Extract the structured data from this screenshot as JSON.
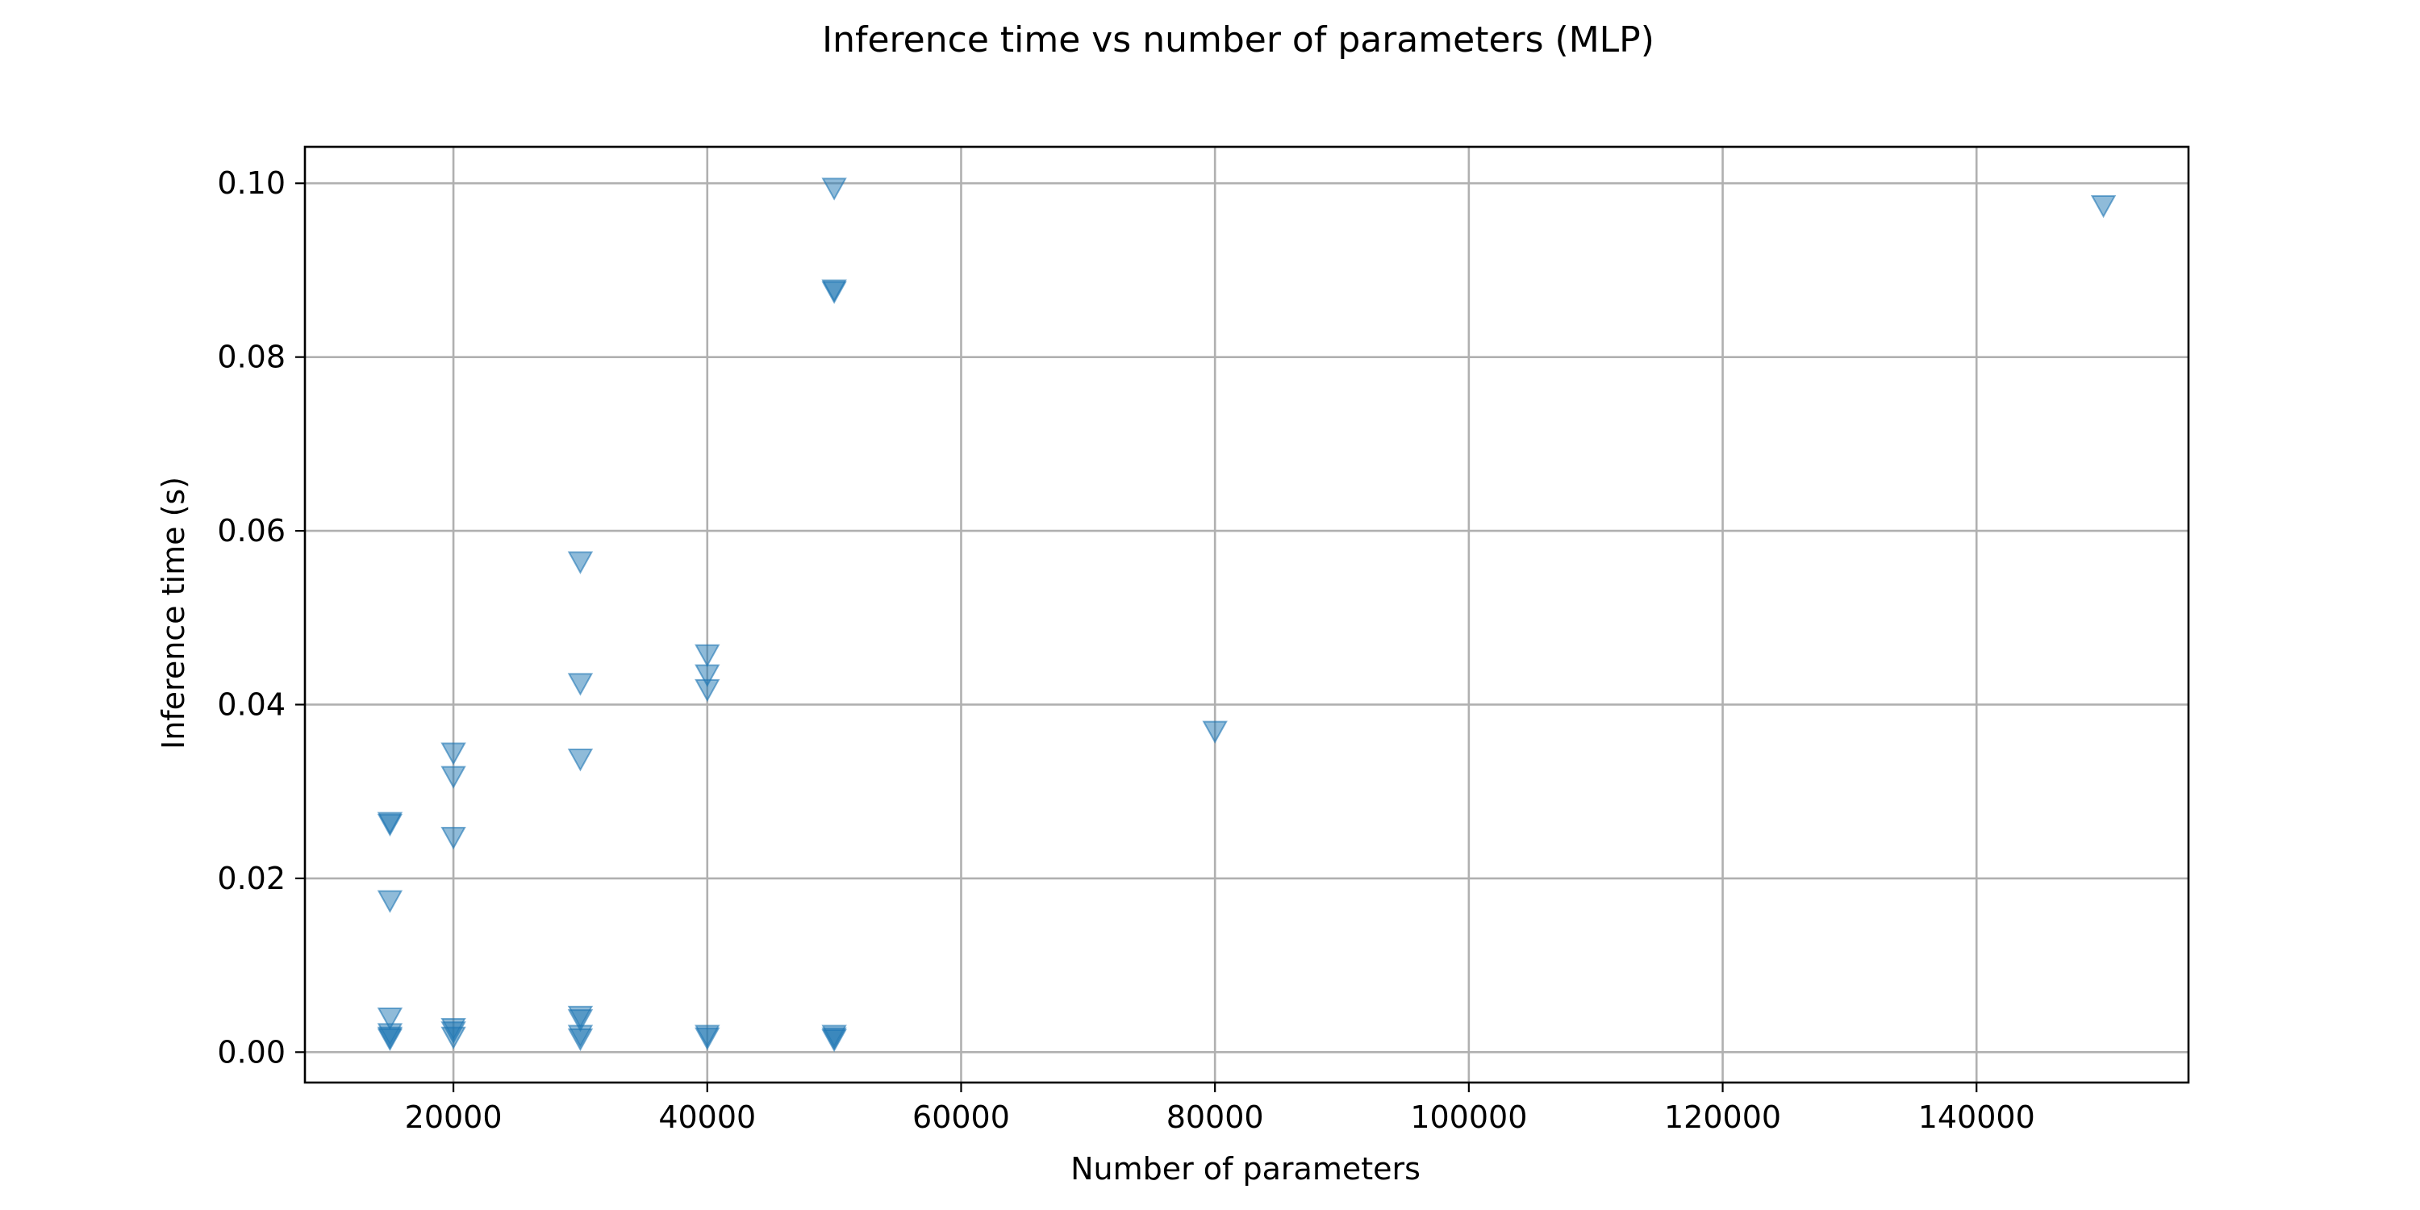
{
  "chart_data": {
    "type": "scatter",
    "title": "Inference time vs number of parameters (MLP)",
    "xlabel": "Number of parameters",
    "ylabel": "Inference time (s)",
    "xlim": [
      8300,
      156700
    ],
    "ylim": [
      -0.0035,
      0.1042
    ],
    "xticks": [
      20000,
      40000,
      60000,
      80000,
      100000,
      120000,
      140000
    ],
    "xtick_labels": [
      "20000",
      "40000",
      "60000",
      "80000",
      "100000",
      "120000",
      "140000"
    ],
    "yticks": [
      0.0,
      0.02,
      0.04,
      0.06,
      0.08,
      0.1
    ],
    "ytick_labels": [
      "0.00",
      "0.02",
      "0.04",
      "0.06",
      "0.08",
      "0.10"
    ],
    "grid": true,
    "marker": "triangle-down",
    "marker_color": "#1f77b4",
    "marker_alpha": 0.5,
    "points": [
      {
        "x": 15000,
        "y": 0.0265
      },
      {
        "x": 15000,
        "y": 0.0263
      },
      {
        "x": 15000,
        "y": 0.0175
      },
      {
        "x": 15000,
        "y": 0.004
      },
      {
        "x": 15000,
        "y": 0.0022
      },
      {
        "x": 15000,
        "y": 0.0018
      },
      {
        "x": 15000,
        "y": 0.0016
      },
      {
        "x": 20000,
        "y": 0.0345
      },
      {
        "x": 20000,
        "y": 0.0318
      },
      {
        "x": 20000,
        "y": 0.0248
      },
      {
        "x": 20000,
        "y": 0.0028
      },
      {
        "x": 20000,
        "y": 0.0024
      },
      {
        "x": 20000,
        "y": 0.0018
      },
      {
        "x": 30000,
        "y": 0.0565
      },
      {
        "x": 30000,
        "y": 0.0425
      },
      {
        "x": 30000,
        "y": 0.0338
      },
      {
        "x": 30000,
        "y": 0.0042
      },
      {
        "x": 30000,
        "y": 0.0038
      },
      {
        "x": 30000,
        "y": 0.002
      },
      {
        "x": 30000,
        "y": 0.0016
      },
      {
        "x": 40000,
        "y": 0.0458
      },
      {
        "x": 40000,
        "y": 0.0435
      },
      {
        "x": 40000,
        "y": 0.0418
      },
      {
        "x": 40000,
        "y": 0.002
      },
      {
        "x": 40000,
        "y": 0.0017
      },
      {
        "x": 50000,
        "y": 0.0995
      },
      {
        "x": 50000,
        "y": 0.0878
      },
      {
        "x": 50000,
        "y": 0.0876
      },
      {
        "x": 50000,
        "y": 0.002
      },
      {
        "x": 50000,
        "y": 0.0017
      },
      {
        "x": 50000,
        "y": 0.0015
      },
      {
        "x": 80000,
        "y": 0.037
      },
      {
        "x": 150000,
        "y": 0.0975
      }
    ]
  }
}
